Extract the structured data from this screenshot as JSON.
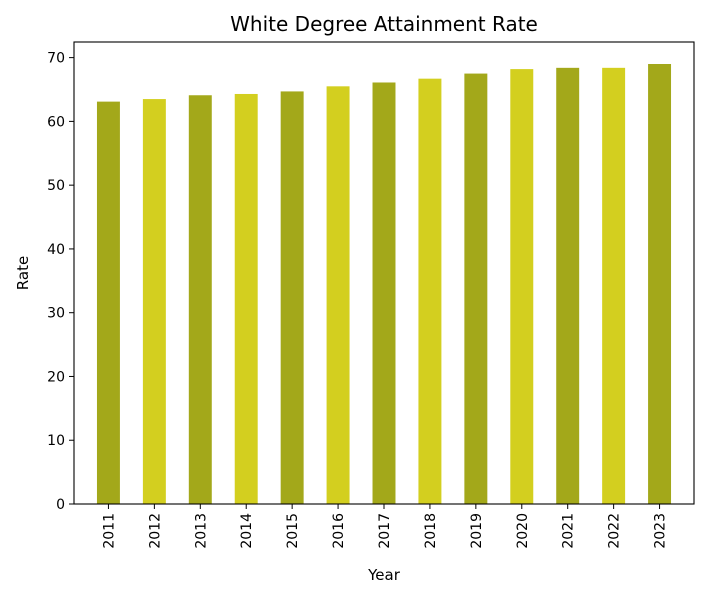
{
  "chart_data": {
    "type": "bar",
    "title": "White Degree Attainment Rate",
    "xlabel": "Year",
    "ylabel": "Rate",
    "categories": [
      "2011",
      "2012",
      "2013",
      "2014",
      "2015",
      "2016",
      "2017",
      "2018",
      "2019",
      "2020",
      "2021",
      "2022",
      "2023"
    ],
    "values": [
      63.1,
      63.5,
      64.1,
      64.3,
      64.7,
      65.5,
      66.1,
      66.7,
      67.5,
      68.2,
      68.4,
      68.4,
      69.0
    ],
    "yticks": [
      0,
      10,
      20,
      30,
      40,
      50,
      60,
      70
    ],
    "ylim": [
      0,
      72.45
    ],
    "grid": false,
    "legend": "none",
    "colors": [
      "#a3a81a",
      "#d3cf1f"
    ]
  }
}
